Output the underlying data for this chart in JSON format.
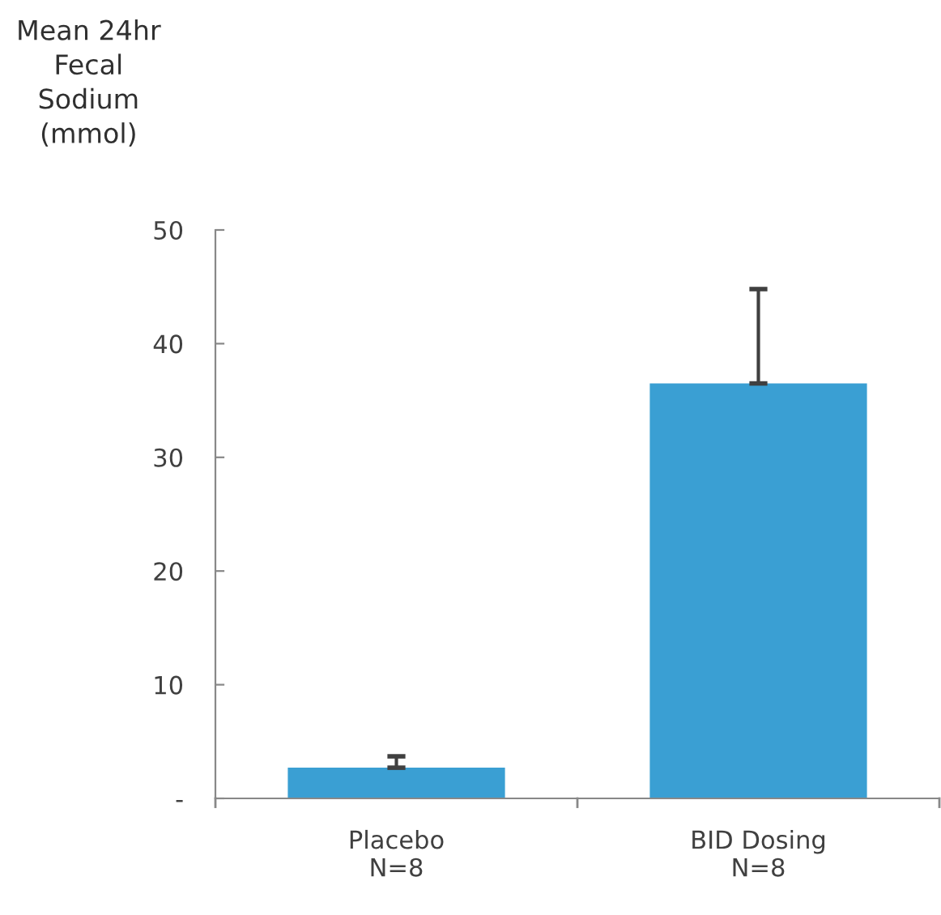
{
  "chart_data": {
    "type": "bar",
    "ylabel": "Mean 24hr\nFecal\nSodium\n(mmol)",
    "categories": [
      "Placebo\nN=8",
      "BID Dosing\nN=8"
    ],
    "values": [
      2.7,
      36.5
    ],
    "errors": [
      1.0,
      8.3
    ],
    "color": "#3a9fd3",
    "ylim": [
      0,
      50
    ],
    "yticks": [
      {
        "value": 0,
        "label": "-"
      },
      10,
      20,
      30,
      40,
      50
    ],
    "grid": false
  }
}
